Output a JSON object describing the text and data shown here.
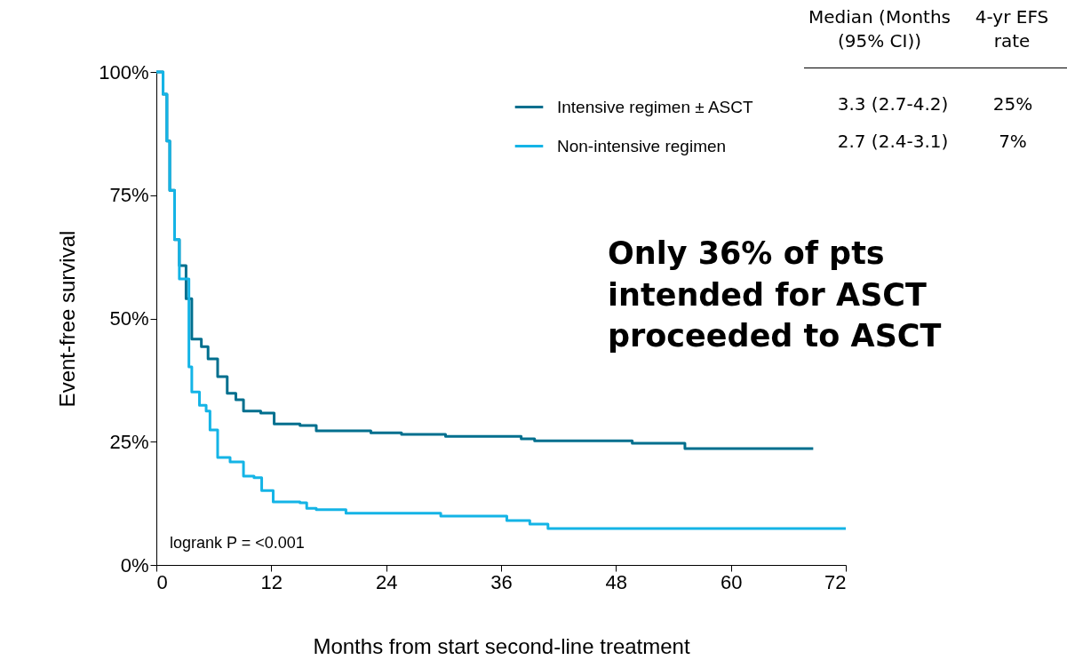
{
  "chart_data": {
    "type": "step",
    "xlabel": "Months from start second-line treatment",
    "ylabel": "Event-free survival",
    "xlim": [
      0,
      72
    ],
    "xticks": [
      0,
      12,
      24,
      36,
      48,
      60,
      72
    ],
    "ylim": [
      0,
      100
    ],
    "yticks": [
      {
        "value": 0,
        "label": "0%"
      },
      {
        "value": 25,
        "label": "25%"
      },
      {
        "value": 50,
        "label": "50%"
      },
      {
        "value": 75,
        "label": "75%"
      },
      {
        "value": 100,
        "label": "100%"
      }
    ],
    "legend": "top right",
    "line_style": "solid",
    "series": [
      {
        "name": "Intensive regimen ± ASCT",
        "color": "#006f8e",
        "x": [
          0,
          0.7,
          1.1,
          1.4,
          1.9,
          2.4,
          3.1,
          3.7,
          4.7,
          5.4,
          6.4,
          7.4,
          8.3,
          9.1,
          10.9,
          12.3,
          15,
          16.7,
          22.4,
          25.6,
          30.2,
          38.1,
          39.5,
          49.7,
          55.2,
          68.6
        ],
        "values": [
          100,
          95.5,
          86,
          76,
          66,
          60.7,
          54,
          45.8,
          44.3,
          41.8,
          38.2,
          34.8,
          33.5,
          31.2,
          30.8,
          28.6,
          28.3,
          27.2,
          26.8,
          26.5,
          26.1,
          25.6,
          25.2,
          24.7,
          23.6,
          23.6
        ]
      },
      {
        "name": "Non-intensive regimen",
        "color": "#14b4e6",
        "x": [
          0,
          0.7,
          1.1,
          1.4,
          1.9,
          2.4,
          3.4,
          3.7,
          4.5,
          5.2,
          5.6,
          6.4,
          7.7,
          9.1,
          10.2,
          11,
          12.2,
          15,
          15.7,
          16.7,
          19.8,
          29.7,
          36.6,
          39,
          40.9,
          72
        ],
        "values": [
          100,
          95.5,
          86,
          76,
          66,
          58,
          40.2,
          35.1,
          32.4,
          31.2,
          27.4,
          21.8,
          20.9,
          18,
          17.7,
          15.1,
          12.8,
          12.6,
          11.5,
          11.2,
          10.5,
          9.9,
          9,
          8.3,
          7.4,
          7.4
        ]
      }
    ],
    "annotations": [
      "Median (Months (95% CI))",
      "4-yr EFS rate",
      "3.3 (2.7-4.2)",
      "25%",
      "2.7 (2.4-3.1)",
      "7%",
      "Only 36% of pts intended for ASCT proceeded to ASCT",
      "logrank P = <0.001"
    ]
  }
}
